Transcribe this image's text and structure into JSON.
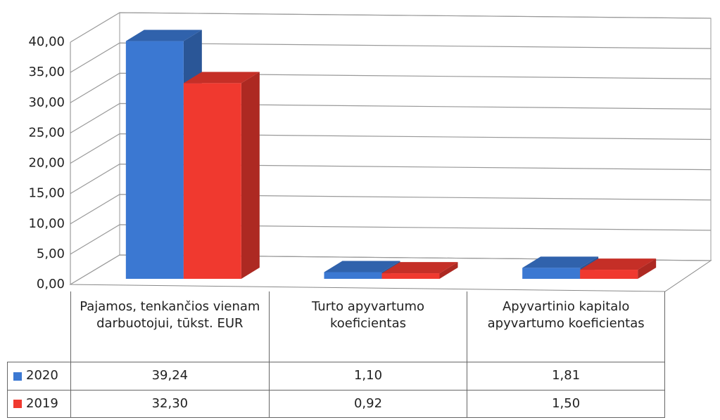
{
  "chart_data": {
    "type": "bar3d",
    "categories": [
      "Pajamos, tenkančios vienam darbuotojui, tūkst. EUR",
      "Turto apyvartumo koeficientas",
      "Apyvartinio kapitalo apyvartumo koeficientas"
    ],
    "series": [
      {
        "name": "2020",
        "color": "#3b78d2",
        "values": [
          39.24,
          1.1,
          1.81
        ],
        "value_labels": [
          "39,24",
          "1,10",
          "1,81"
        ]
      },
      {
        "name": "2019",
        "color": "#f0392f",
        "values": [
          32.3,
          0.92,
          1.5
        ],
        "value_labels": [
          "32,30",
          "0,92",
          "1,50"
        ]
      }
    ],
    "ylim": [
      0,
      40
    ],
    "yticks": [
      {
        "value": 0,
        "label": "0,00"
      },
      {
        "value": 5,
        "label": "5,00"
      },
      {
        "value": 10,
        "label": "10,00"
      },
      {
        "value": 15,
        "label": "15,00"
      },
      {
        "value": 20,
        "label": "20,00"
      },
      {
        "value": 25,
        "label": "25,00"
      },
      {
        "value": 30,
        "label": "30,00"
      },
      {
        "value": 35,
        "label": "35,00"
      },
      {
        "value": 40,
        "label": "40,00"
      }
    ],
    "grid": true
  }
}
